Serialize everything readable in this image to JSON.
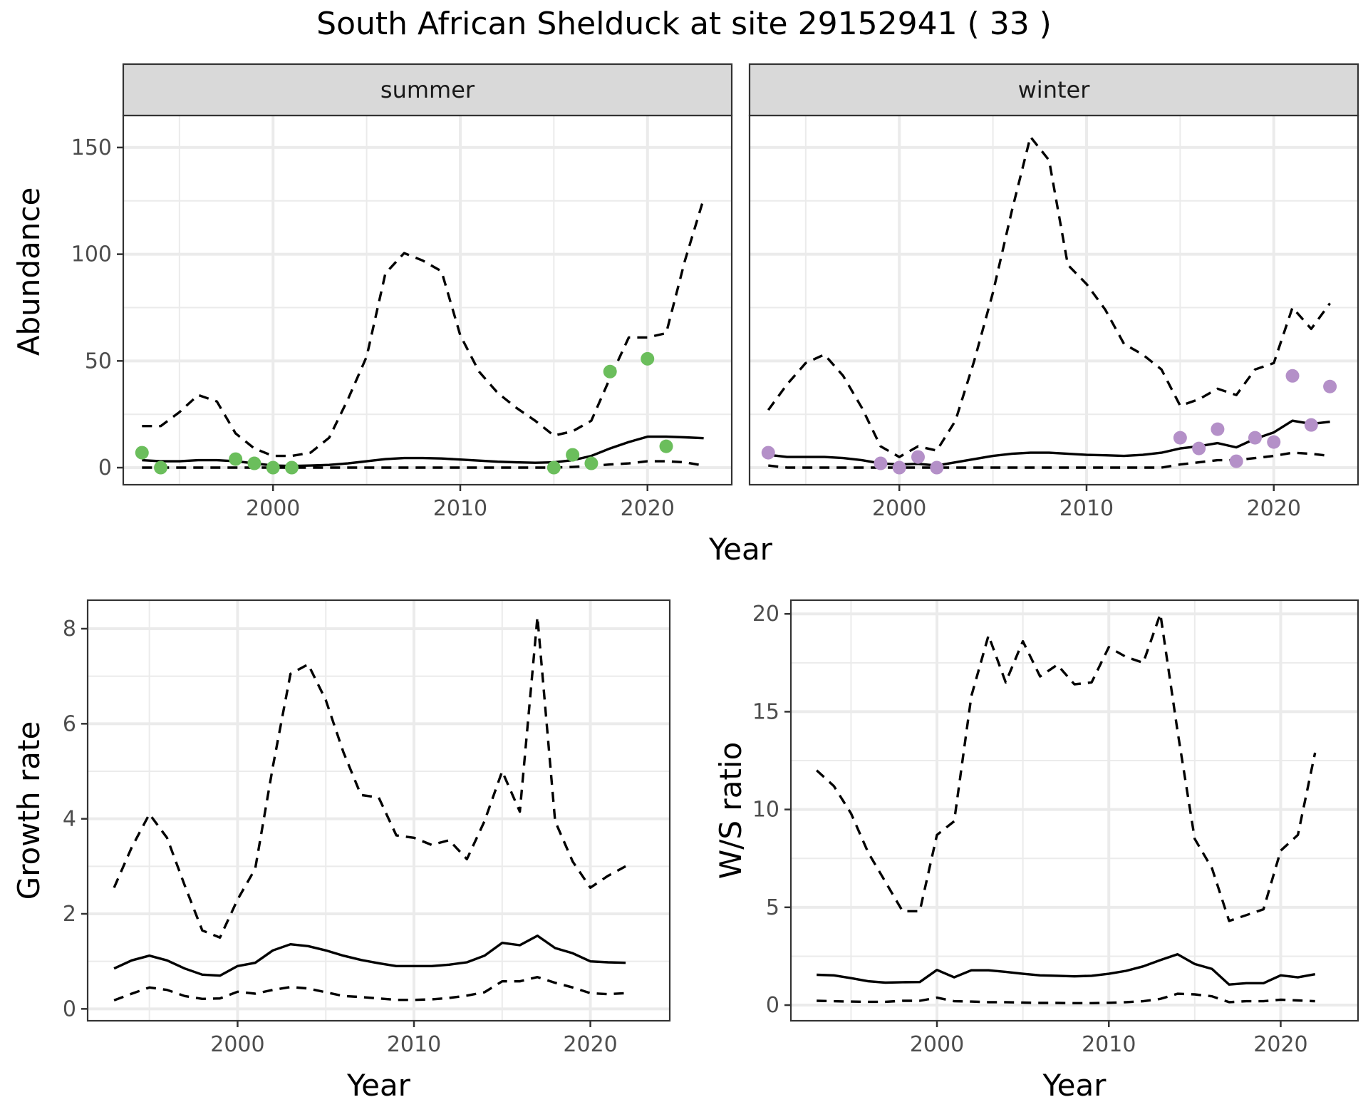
{
  "title": "South African Shelduck at site 29152941 ( 33 )",
  "chart_data": [
    {
      "id": "abundance",
      "type": "line",
      "facets": [
        "summer",
        "winter"
      ],
      "xlabel": "Year",
      "ylabel": "Abundance",
      "xlim": [
        1992,
        2024.5
      ],
      "ylim": [
        -8,
        165
      ],
      "xticks": [
        2000,
        2010,
        2020
      ],
      "yticks": [
        0,
        50,
        100,
        150
      ],
      "grid": true,
      "panels": [
        {
          "facet": "summer",
          "point_color": "#6BBE5C",
          "points": {
            "x": [
              1993,
              1994,
              1998,
              1999,
              2000,
              2001,
              2015,
              2016,
              2017,
              2018,
              2020,
              2021
            ],
            "y": [
              7,
              0,
              4,
              2,
              0,
              0,
              0,
              6,
              2,
              45,
              51,
              10
            ]
          },
          "series": [
            {
              "name": "fitted",
              "style": "solid",
              "x": [
                1993,
                1994,
                1995,
                1996,
                1997,
                1998,
                1999,
                2000,
                2001,
                2002,
                2003,
                2004,
                2005,
                2006,
                2007,
                2008,
                2009,
                2010,
                2011,
                2012,
                2013,
                2014,
                2015,
                2016,
                2017,
                2018,
                2019,
                2020,
                2021,
                2022,
                2023
              ],
              "y": [
                3.5,
                3,
                3,
                3.5,
                3.5,
                3,
                2,
                1,
                0.8,
                1,
                1.3,
                2,
                3,
                4,
                4.5,
                4.5,
                4.3,
                3.8,
                3.3,
                2.8,
                2.5,
                2.3,
                2.5,
                3.5,
                5.5,
                9,
                12,
                14.5,
                14.5,
                14.2,
                13.8
              ]
            },
            {
              "name": "upper",
              "style": "dashed",
              "x": [
                1993,
                1994,
                1995,
                1996,
                1997,
                1998,
                1999,
                2000,
                2001,
                2002,
                2003,
                2004,
                2005,
                2006,
                2007,
                2008,
                2009,
                2010,
                2011,
                2012,
                2013,
                2014,
                2015,
                2016,
                2017,
                2018,
                2019,
                2020,
                2021,
                2022,
                2023
              ],
              "y": [
                19.5,
                19.5,
                26,
                34,
                31,
                16,
                9,
                5.5,
                5.5,
                7,
                14,
                32,
                52,
                91,
                100.5,
                97,
                92,
                62,
                45,
                35,
                28,
                22,
                15,
                17,
                22,
                42,
                61,
                61,
                63,
                97,
                126
              ]
            },
            {
              "name": "lower",
              "style": "dashed",
              "x": [
                1993,
                1994,
                1995,
                1996,
                1997,
                1998,
                1999,
                2000,
                2001,
                2002,
                2003,
                2004,
                2005,
                2006,
                2007,
                2008,
                2009,
                2010,
                2011,
                2012,
                2013,
                2014,
                2015,
                2016,
                2017,
                2018,
                2019,
                2020,
                2021,
                2022,
                2023
              ],
              "y": [
                0,
                0,
                0,
                0,
                0,
                0,
                0,
                0,
                0,
                0,
                0,
                0,
                0,
                0,
                0,
                0,
                0,
                0,
                0,
                0,
                0,
                0,
                0,
                0.3,
                0.8,
                1.5,
                2,
                3,
                3,
                2.5,
                1
              ]
            }
          ]
        },
        {
          "facet": "winter",
          "point_color": "#B490C8",
          "points": {
            "x": [
              1993,
              1999,
              2000,
              2001,
              2002,
              2015,
              2016,
              2017,
              2018,
              2019,
              2020,
              2021,
              2022,
              2023
            ],
            "y": [
              7,
              2,
              0,
              5,
              0,
              14,
              9,
              18,
              3,
              14,
              12,
              43,
              20,
              38
            ]
          },
          "series": [
            {
              "name": "fitted",
              "style": "solid",
              "x": [
                1993,
                1994,
                1995,
                1996,
                1997,
                1998,
                1999,
                2000,
                2001,
                2002,
                2003,
                2004,
                2005,
                2006,
                2007,
                2008,
                2009,
                2010,
                2011,
                2012,
                2013,
                2014,
                2015,
                2016,
                2017,
                2018,
                2019,
                2020,
                2021,
                2022,
                2023
              ],
              "y": [
                6,
                5,
                5,
                5,
                4.5,
                3.5,
                2,
                1.5,
                1.8,
                1,
                2.5,
                4,
                5.5,
                6.5,
                7,
                7,
                6.5,
                6,
                5.8,
                5.5,
                6,
                7,
                9,
                10,
                11.5,
                9.5,
                13.5,
                16.5,
                22,
                20.5,
                21.5
              ]
            },
            {
              "name": "upper",
              "style": "dashed",
              "x": [
                1993,
                1994,
                1995,
                1996,
                1997,
                1998,
                1999,
                2000,
                2001,
                2002,
                2003,
                2004,
                2005,
                2006,
                2007,
                2008,
                2009,
                2010,
                2011,
                2012,
                2013,
                2014,
                2015,
                2016,
                2017,
                2018,
                2019,
                2020,
                2021,
                2022,
                2023
              ],
              "y": [
                27,
                39,
                49,
                53,
                43,
                28,
                10,
                5,
                10,
                8,
                22,
                50,
                82,
                120,
                155,
                144,
                95,
                86,
                74,
                58,
                53,
                46,
                29,
                32,
                37,
                34,
                46,
                49,
                75,
                65,
                77
              ]
            },
            {
              "name": "lower",
              "style": "dashed",
              "x": [
                1993,
                1994,
                1995,
                1996,
                1997,
                1998,
                1999,
                2000,
                2001,
                2002,
                2003,
                2004,
                2005,
                2006,
                2007,
                2008,
                2009,
                2010,
                2011,
                2012,
                2013,
                2014,
                2015,
                2016,
                2017,
                2018,
                2019,
                2020,
                2021,
                2022,
                2023
              ],
              "y": [
                1,
                0,
                0,
                0,
                0,
                0,
                0,
                0,
                0,
                0,
                0,
                0,
                0,
                0,
                0,
                0,
                0,
                0,
                0,
                0,
                0,
                0,
                1.5,
                2.5,
                3.5,
                3.5,
                4.5,
                5.5,
                7,
                6.5,
                5.5
              ]
            }
          ]
        }
      ]
    },
    {
      "id": "growth",
      "type": "line",
      "xlabel": "Year",
      "ylabel": "Growth rate",
      "xlim": [
        1991.5,
        2024.5
      ],
      "ylim": [
        -0.25,
        8.6
      ],
      "xticks": [
        2000,
        2010,
        2020
      ],
      "yticks": [
        0,
        2,
        4,
        6,
        8
      ],
      "grid": true,
      "series": [
        {
          "name": "fitted",
          "style": "solid",
          "x": [
            1993,
            1994,
            1995,
            1996,
            1997,
            1998,
            1999,
            2000,
            2001,
            2002,
            2003,
            2004,
            2005,
            2006,
            2007,
            2008,
            2009,
            2010,
            2011,
            2012,
            2013,
            2014,
            2015,
            2016,
            2017,
            2018,
            2019,
            2020,
            2021,
            2022
          ],
          "y": [
            0.85,
            1.02,
            1.12,
            1.02,
            0.85,
            0.72,
            0.7,
            0.9,
            0.97,
            1.23,
            1.36,
            1.32,
            1.23,
            1.12,
            1.03,
            0.96,
            0.9,
            0.9,
            0.9,
            0.93,
            0.98,
            1.12,
            1.39,
            1.34,
            1.54,
            1.28,
            1.17,
            1.0,
            0.98,
            0.97
          ]
        },
        {
          "name": "upper",
          "style": "dashed",
          "x": [
            1993,
            1994,
            1995,
            1996,
            1997,
            1998,
            1999,
            2000,
            2001,
            2002,
            2003,
            2004,
            2005,
            2006,
            2007,
            2008,
            2009,
            2010,
            2011,
            2012,
            2013,
            2014,
            2015,
            2016,
            2017,
            2018,
            2019,
            2020,
            2021,
            2022
          ],
          "y": [
            2.55,
            3.4,
            4.1,
            3.6,
            2.6,
            1.65,
            1.5,
            2.3,
            2.95,
            5.1,
            7.05,
            7.25,
            6.5,
            5.4,
            4.5,
            4.45,
            3.65,
            3.6,
            3.45,
            3.55,
            3.15,
            3.95,
            5.0,
            4.15,
            8.25,
            3.95,
            3.1,
            2.55,
            2.8,
            3.0
          ]
        },
        {
          "name": "lower",
          "style": "dashed",
          "x": [
            1993,
            1994,
            1995,
            1996,
            1997,
            1998,
            1999,
            2000,
            2001,
            2002,
            2003,
            2004,
            2005,
            2006,
            2007,
            2008,
            2009,
            2010,
            2011,
            2012,
            2013,
            2014,
            2015,
            2016,
            2017,
            2018,
            2019,
            2020,
            2021,
            2022
          ],
          "y": [
            0.18,
            0.32,
            0.45,
            0.4,
            0.27,
            0.21,
            0.22,
            0.36,
            0.32,
            0.4,
            0.46,
            0.43,
            0.35,
            0.27,
            0.25,
            0.22,
            0.19,
            0.19,
            0.2,
            0.23,
            0.28,
            0.35,
            0.58,
            0.58,
            0.67,
            0.55,
            0.45,
            0.33,
            0.31,
            0.33
          ]
        }
      ]
    },
    {
      "id": "ws_ratio",
      "type": "line",
      "xlabel": "Year",
      "ylabel": "W/S ratio",
      "xlim": [
        1991.5,
        2024.5
      ],
      "ylim": [
        -0.8,
        20.7
      ],
      "xticks": [
        2000,
        2010,
        2020
      ],
      "yticks": [
        0,
        5,
        10,
        15,
        20
      ],
      "grid": true,
      "series": [
        {
          "name": "fitted",
          "style": "solid",
          "x": [
            1993,
            1994,
            1995,
            1996,
            1997,
            1998,
            1999,
            2000,
            2001,
            2002,
            2003,
            2004,
            2005,
            2006,
            2007,
            2008,
            2009,
            2010,
            2011,
            2012,
            2013,
            2014,
            2015,
            2016,
            2017,
            2018,
            2019,
            2020,
            2021,
            2022
          ],
          "y": [
            1.55,
            1.52,
            1.38,
            1.22,
            1.15,
            1.17,
            1.18,
            1.8,
            1.42,
            1.78,
            1.78,
            1.7,
            1.6,
            1.52,
            1.5,
            1.47,
            1.5,
            1.6,
            1.75,
            1.98,
            2.3,
            2.6,
            2.1,
            1.85,
            1.05,
            1.12,
            1.12,
            1.52,
            1.42,
            1.58
          ]
        },
        {
          "name": "upper",
          "style": "dashed",
          "x": [
            1993,
            1994,
            1995,
            1996,
            1997,
            1998,
            1999,
            2000,
            2001,
            2002,
            2003,
            2004,
            2005,
            2006,
            2007,
            2008,
            2009,
            2010,
            2011,
            2012,
            2013,
            2014,
            2015,
            2016,
            2017,
            2018,
            2019,
            2020,
            2021,
            2022
          ],
          "y": [
            12.0,
            11.2,
            9.8,
            7.8,
            6.3,
            4.8,
            4.8,
            8.7,
            9.4,
            15.8,
            18.9,
            16.5,
            18.6,
            16.8,
            17.4,
            16.4,
            16.5,
            18.3,
            17.8,
            17.5,
            20.0,
            14.0,
            8.5,
            7.0,
            4.3,
            4.6,
            4.9,
            7.9,
            8.7,
            12.9
          ]
        },
        {
          "name": "lower",
          "style": "dashed",
          "x": [
            1993,
            1994,
            1995,
            1996,
            1997,
            1998,
            1999,
            2000,
            2001,
            2002,
            2003,
            2004,
            2005,
            2006,
            2007,
            2008,
            2009,
            2010,
            2011,
            2012,
            2013,
            2014,
            2015,
            2016,
            2017,
            2018,
            2019,
            2020,
            2021,
            2022
          ],
          "y": [
            0.22,
            0.2,
            0.18,
            0.17,
            0.17,
            0.22,
            0.22,
            0.38,
            0.2,
            0.18,
            0.15,
            0.15,
            0.13,
            0.11,
            0.11,
            0.1,
            0.1,
            0.12,
            0.15,
            0.2,
            0.32,
            0.58,
            0.55,
            0.45,
            0.15,
            0.2,
            0.2,
            0.28,
            0.24,
            0.2
          ]
        }
      ]
    }
  ]
}
